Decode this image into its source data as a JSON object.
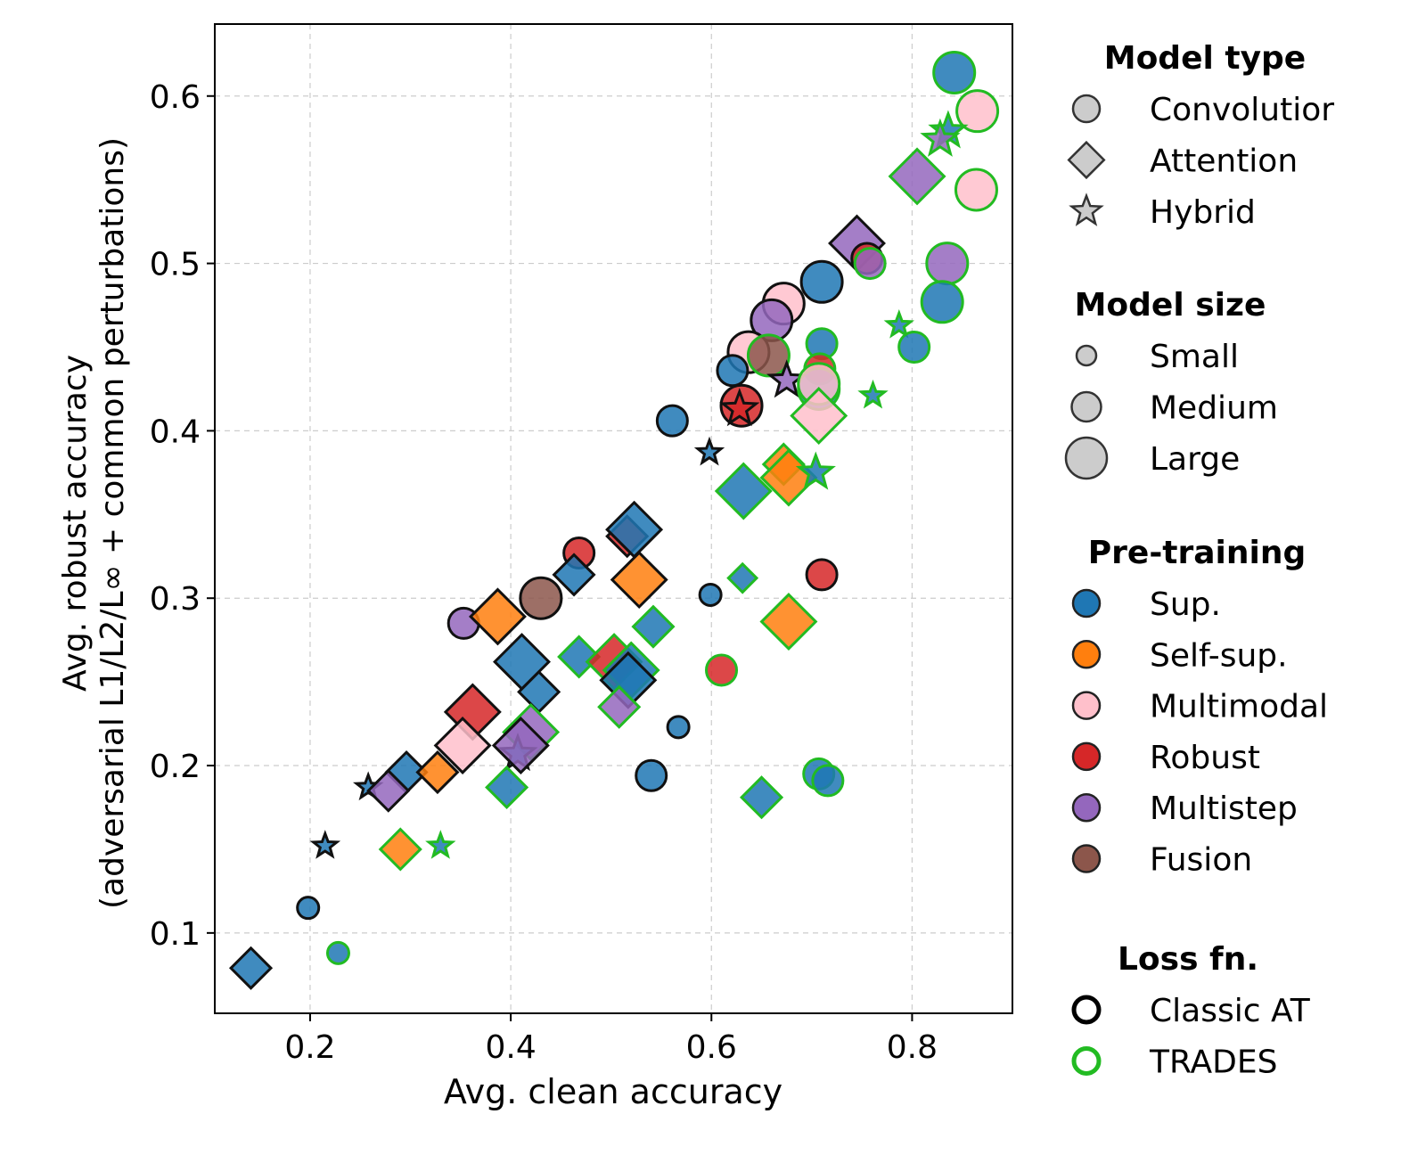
{
  "chart_data": {
    "type": "scatter",
    "xlabel": "Avg. clean accuracy",
    "ylabel_line1": "Avg. robust accuracy",
    "ylabel_line2": "(adversarial L1/L2/L∞ + common perturbations)",
    "xlim": [
      0.105,
      0.9
    ],
    "ylim": [
      0.052,
      0.643
    ],
    "xticks": [
      {
        "value": 0.2,
        "label": "0.2"
      },
      {
        "value": 0.4,
        "label": "0.4"
      },
      {
        "value": 0.6,
        "label": "0.6"
      },
      {
        "value": 0.8,
        "label": "0.8"
      }
    ],
    "yticks": [
      {
        "value": 0.1,
        "label": "0.1"
      },
      {
        "value": 0.2,
        "label": "0.2"
      },
      {
        "value": 0.3,
        "label": "0.3"
      },
      {
        "value": 0.4,
        "label": "0.4"
      },
      {
        "value": 0.5,
        "label": "0.5"
      },
      {
        "value": 0.6,
        "label": "0.6"
      }
    ],
    "grid": true,
    "colors": {
      "sup": "#1f77b4",
      "self": "#ff7f0e",
      "multimodal": "#ffc0cb",
      "robust": "#d62728",
      "multistep": "#9467bd",
      "fusion": "#8c564b",
      "classic_edge": "#111111",
      "trades_edge": "#22bb22",
      "legend_marker_fill": "#cccccc"
    },
    "points": [
      {
        "x": 0.842,
        "y": 0.614,
        "shape": "circle",
        "size": "large",
        "pretrain": "sup",
        "loss": "trades"
      },
      {
        "x": 0.865,
        "y": 0.591,
        "shape": "circle",
        "size": "large",
        "pretrain": "multimodal",
        "loss": "trades"
      },
      {
        "x": 0.864,
        "y": 0.544,
        "shape": "circle",
        "size": "large",
        "pretrain": "multimodal",
        "loss": "trades"
      },
      {
        "x": 0.836,
        "y": 0.579,
        "shape": "star",
        "size": "medium",
        "pretrain": "sup",
        "loss": "trades"
      },
      {
        "x": 0.828,
        "y": 0.574,
        "shape": "star",
        "size": "medium",
        "pretrain": "multistep",
        "loss": "trades"
      },
      {
        "x": 0.805,
        "y": 0.552,
        "shape": "diamond",
        "size": "large",
        "pretrain": "multistep",
        "loss": "trades"
      },
      {
        "x": 0.745,
        "y": 0.512,
        "shape": "diamond",
        "size": "large",
        "pretrain": "multistep",
        "loss": "classic"
      },
      {
        "x": 0.755,
        "y": 0.503,
        "shape": "circle",
        "size": "medium",
        "pretrain": "robust",
        "loss": "classic"
      },
      {
        "x": 0.758,
        "y": 0.5,
        "shape": "circle",
        "size": "medium",
        "pretrain": "multistep",
        "loss": "trades"
      },
      {
        "x": 0.835,
        "y": 0.5,
        "shape": "circle",
        "size": "large",
        "pretrain": "multistep",
        "loss": "trades"
      },
      {
        "x": 0.83,
        "y": 0.477,
        "shape": "circle",
        "size": "large",
        "pretrain": "sup",
        "loss": "trades"
      },
      {
        "x": 0.71,
        "y": 0.489,
        "shape": "circle",
        "size": "large",
        "pretrain": "sup",
        "loss": "classic"
      },
      {
        "x": 0.672,
        "y": 0.476,
        "shape": "circle",
        "size": "large",
        "pretrain": "multimodal",
        "loss": "classic"
      },
      {
        "x": 0.66,
        "y": 0.466,
        "shape": "circle",
        "size": "large",
        "pretrain": "multistep",
        "loss": "classic"
      },
      {
        "x": 0.787,
        "y": 0.463,
        "shape": "star",
        "size": "small",
        "pretrain": "sup",
        "loss": "trades"
      },
      {
        "x": 0.802,
        "y": 0.45,
        "shape": "circle",
        "size": "medium",
        "pretrain": "sup",
        "loss": "trades"
      },
      {
        "x": 0.71,
        "y": 0.452,
        "shape": "circle",
        "size": "medium",
        "pretrain": "sup",
        "loss": "trades"
      },
      {
        "x": 0.637,
        "y": 0.447,
        "shape": "circle",
        "size": "large",
        "pretrain": "multimodal",
        "loss": "classic"
      },
      {
        "x": 0.657,
        "y": 0.445,
        "shape": "circle",
        "size": "large",
        "pretrain": "fusion",
        "loss": "trades"
      },
      {
        "x": 0.621,
        "y": 0.436,
        "shape": "circle",
        "size": "medium",
        "pretrain": "sup",
        "loss": "classic"
      },
      {
        "x": 0.708,
        "y": 0.437,
        "shape": "circle",
        "size": "medium",
        "pretrain": "robust",
        "loss": "trades"
      },
      {
        "x": 0.675,
        "y": 0.43,
        "shape": "star",
        "size": "medium",
        "pretrain": "multistep",
        "loss": "classic"
      },
      {
        "x": 0.707,
        "y": 0.425,
        "shape": "circle",
        "size": "large",
        "pretrain": "sup",
        "loss": "trades"
      },
      {
        "x": 0.707,
        "y": 0.428,
        "shape": "circle",
        "size": "large",
        "pretrain": "multimodal",
        "loss": "trades"
      },
      {
        "x": 0.63,
        "y": 0.415,
        "shape": "circle",
        "size": "large",
        "pretrain": "robust",
        "loss": "classic"
      },
      {
        "x": 0.628,
        "y": 0.413,
        "shape": "star",
        "size": "medium",
        "pretrain": "robust",
        "loss": "classic"
      },
      {
        "x": 0.761,
        "y": 0.421,
        "shape": "star",
        "size": "small",
        "pretrain": "sup",
        "loss": "trades"
      },
      {
        "x": 0.707,
        "y": 0.409,
        "shape": "diamond",
        "size": "large",
        "pretrain": "multimodal",
        "loss": "trades"
      },
      {
        "x": 0.561,
        "y": 0.406,
        "shape": "circle",
        "size": "medium",
        "pretrain": "sup",
        "loss": "classic"
      },
      {
        "x": 0.598,
        "y": 0.387,
        "shape": "star",
        "size": "small",
        "pretrain": "sup",
        "loss": "classic"
      },
      {
        "x": 0.672,
        "y": 0.38,
        "shape": "diamond",
        "size": "medium",
        "pretrain": "self",
        "loss": "trades"
      },
      {
        "x": 0.677,
        "y": 0.372,
        "shape": "diamond",
        "size": "large",
        "pretrain": "self",
        "loss": "trades"
      },
      {
        "x": 0.704,
        "y": 0.375,
        "shape": "star",
        "size": "medium",
        "pretrain": "sup",
        "loss": "trades"
      },
      {
        "x": 0.632,
        "y": 0.364,
        "shape": "diamond",
        "size": "large",
        "pretrain": "sup",
        "loss": "trades"
      },
      {
        "x": 0.516,
        "y": 0.337,
        "shape": "diamond",
        "size": "medium",
        "pretrain": "robust",
        "loss": "classic"
      },
      {
        "x": 0.523,
        "y": 0.341,
        "shape": "diamond",
        "size": "large",
        "pretrain": "sup",
        "loss": "classic"
      },
      {
        "x": 0.468,
        "y": 0.327,
        "shape": "circle",
        "size": "medium",
        "pretrain": "robust",
        "loss": "classic"
      },
      {
        "x": 0.463,
        "y": 0.314,
        "shape": "diamond",
        "size": "medium",
        "pretrain": "sup",
        "loss": "classic"
      },
      {
        "x": 0.528,
        "y": 0.311,
        "shape": "diamond",
        "size": "large",
        "pretrain": "self",
        "loss": "classic"
      },
      {
        "x": 0.631,
        "y": 0.312,
        "shape": "diamond",
        "size": "small",
        "pretrain": "sup",
        "loss": "trades"
      },
      {
        "x": 0.71,
        "y": 0.314,
        "shape": "circle",
        "size": "medium",
        "pretrain": "robust",
        "loss": "classic"
      },
      {
        "x": 0.599,
        "y": 0.302,
        "shape": "circle",
        "size": "small",
        "pretrain": "sup",
        "loss": "classic"
      },
      {
        "x": 0.43,
        "y": 0.3,
        "shape": "circle",
        "size": "large",
        "pretrain": "fusion",
        "loss": "classic"
      },
      {
        "x": 0.353,
        "y": 0.285,
        "shape": "circle",
        "size": "medium",
        "pretrain": "multistep",
        "loss": "classic"
      },
      {
        "x": 0.387,
        "y": 0.289,
        "shape": "diamond",
        "size": "large",
        "pretrain": "self",
        "loss": "classic"
      },
      {
        "x": 0.677,
        "y": 0.286,
        "shape": "diamond",
        "size": "large",
        "pretrain": "self",
        "loss": "trades"
      },
      {
        "x": 0.542,
        "y": 0.283,
        "shape": "diamond",
        "size": "medium",
        "pretrain": "sup",
        "loss": "trades"
      },
      {
        "x": 0.411,
        "y": 0.262,
        "shape": "diamond",
        "size": "large",
        "pretrain": "sup",
        "loss": "classic"
      },
      {
        "x": 0.468,
        "y": 0.265,
        "shape": "diamond",
        "size": "medium",
        "pretrain": "sup",
        "loss": "trades"
      },
      {
        "x": 0.503,
        "y": 0.262,
        "shape": "diamond",
        "size": "large",
        "pretrain": "robust",
        "loss": "trades"
      },
      {
        "x": 0.52,
        "y": 0.257,
        "shape": "diamond",
        "size": "large",
        "pretrain": "sup",
        "loss": "trades"
      },
      {
        "x": 0.61,
        "y": 0.257,
        "shape": "circle",
        "size": "medium",
        "pretrain": "robust",
        "loss": "trades"
      },
      {
        "x": 0.517,
        "y": 0.251,
        "shape": "diamond",
        "size": "large",
        "pretrain": "sup",
        "loss": "classic"
      },
      {
        "x": 0.428,
        "y": 0.244,
        "shape": "diamond",
        "size": "medium",
        "pretrain": "sup",
        "loss": "classic"
      },
      {
        "x": 0.508,
        "y": 0.235,
        "shape": "diamond",
        "size": "medium",
        "pretrain": "multistep",
        "loss": "trades"
      },
      {
        "x": 0.362,
        "y": 0.232,
        "shape": "diamond",
        "size": "large",
        "pretrain": "robust",
        "loss": "classic"
      },
      {
        "x": 0.567,
        "y": 0.223,
        "shape": "circle",
        "size": "small",
        "pretrain": "sup",
        "loss": "classic"
      },
      {
        "x": 0.42,
        "y": 0.22,
        "shape": "diamond",
        "size": "large",
        "pretrain": "multistep",
        "loss": "trades"
      },
      {
        "x": 0.352,
        "y": 0.212,
        "shape": "diamond",
        "size": "large",
        "pretrain": "multimodal",
        "loss": "classic"
      },
      {
        "x": 0.407,
        "y": 0.207,
        "shape": "star",
        "size": "medium",
        "pretrain": "sup",
        "loss": "classic"
      },
      {
        "x": 0.41,
        "y": 0.212,
        "shape": "diamond",
        "size": "large",
        "pretrain": "multistep",
        "loss": "classic"
      },
      {
        "x": 0.296,
        "y": 0.196,
        "shape": "diamond",
        "size": "medium",
        "pretrain": "sup",
        "loss": "classic"
      },
      {
        "x": 0.327,
        "y": 0.196,
        "shape": "diamond",
        "size": "medium",
        "pretrain": "self",
        "loss": "classic"
      },
      {
        "x": 0.54,
        "y": 0.194,
        "shape": "circle",
        "size": "medium",
        "pretrain": "sup",
        "loss": "classic"
      },
      {
        "x": 0.707,
        "y": 0.195,
        "shape": "circle",
        "size": "medium",
        "pretrain": "sup",
        "loss": "trades"
      },
      {
        "x": 0.716,
        "y": 0.191,
        "shape": "circle",
        "size": "medium",
        "pretrain": "sup",
        "loss": "trades"
      },
      {
        "x": 0.258,
        "y": 0.187,
        "shape": "star",
        "size": "small",
        "pretrain": "sup",
        "loss": "classic"
      },
      {
        "x": 0.396,
        "y": 0.187,
        "shape": "diamond",
        "size": "medium",
        "pretrain": "sup",
        "loss": "trades"
      },
      {
        "x": 0.278,
        "y": 0.185,
        "shape": "diamond",
        "size": "medium",
        "pretrain": "multistep",
        "loss": "classic"
      },
      {
        "x": 0.65,
        "y": 0.181,
        "shape": "diamond",
        "size": "medium",
        "pretrain": "sup",
        "loss": "trades"
      },
      {
        "x": 0.215,
        "y": 0.152,
        "shape": "star",
        "size": "small",
        "pretrain": "sup",
        "loss": "classic"
      },
      {
        "x": 0.29,
        "y": 0.15,
        "shape": "diamond",
        "size": "medium",
        "pretrain": "self",
        "loss": "trades"
      },
      {
        "x": 0.33,
        "y": 0.152,
        "shape": "star",
        "size": "small",
        "pretrain": "sup",
        "loss": "trades"
      },
      {
        "x": 0.198,
        "y": 0.115,
        "shape": "circle",
        "size": "small",
        "pretrain": "sup",
        "loss": "classic"
      },
      {
        "x": 0.228,
        "y": 0.088,
        "shape": "circle",
        "size": "small",
        "pretrain": "sup",
        "loss": "trades"
      },
      {
        "x": 0.141,
        "y": 0.079,
        "shape": "diamond",
        "size": "medium",
        "pretrain": "sup",
        "loss": "classic"
      }
    ]
  },
  "legend": {
    "model_type": {
      "title": "Model type",
      "items": [
        {
          "shape": "circle",
          "label": "Convolutior"
        },
        {
          "shape": "diamond",
          "label": "Attention"
        },
        {
          "shape": "star",
          "label": "Hybrid"
        }
      ]
    },
    "model_size": {
      "title": "Model size",
      "items": [
        {
          "size": "small",
          "label": "Small"
        },
        {
          "size": "medium",
          "label": "Medium"
        },
        {
          "size": "large",
          "label": "Large"
        }
      ]
    },
    "pretraining": {
      "title": "Pre-training",
      "items": [
        {
          "key": "sup",
          "label": "Sup."
        },
        {
          "key": "self",
          "label": "Self-sup."
        },
        {
          "key": "multimodal",
          "label": "Multimodal"
        },
        {
          "key": "robust",
          "label": "Robust"
        },
        {
          "key": "multistep",
          "label": "Multistep"
        },
        {
          "key": "fusion",
          "label": "Fusion"
        }
      ]
    },
    "loss": {
      "title": "Loss fn.",
      "items": [
        {
          "key": "classic",
          "label": "Classic AT"
        },
        {
          "key": "trades",
          "label": "TRADES"
        }
      ]
    }
  }
}
